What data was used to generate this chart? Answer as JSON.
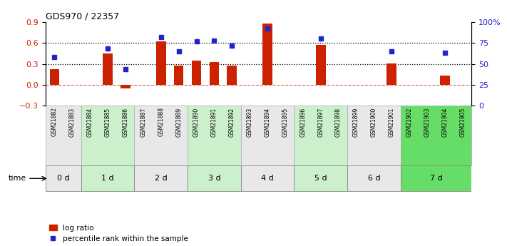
{
  "title": "GDS970 / 22357",
  "samples": [
    "GSM21882",
    "GSM21883",
    "GSM21884",
    "GSM21885",
    "GSM21886",
    "GSM21887",
    "GSM21888",
    "GSM21889",
    "GSM21890",
    "GSM21891",
    "GSM21892",
    "GSM21893",
    "GSM21894",
    "GSM21895",
    "GSM21896",
    "GSM21897",
    "GSM21898",
    "GSM21899",
    "GSM21900",
    "GSM21901",
    "GSM21902",
    "GSM21903",
    "GSM21904",
    "GSM21905"
  ],
  "log_ratio": [
    0.22,
    0.0,
    0.0,
    0.45,
    -0.05,
    0.0,
    0.62,
    0.27,
    0.35,
    0.33,
    0.27,
    0.0,
    0.88,
    0.0,
    0.0,
    0.57,
    0.0,
    0.0,
    0.0,
    0.31,
    0.0,
    0.0,
    0.13,
    0.0
  ],
  "percentile_pct": [
    58,
    0,
    0,
    68,
    44,
    0,
    82,
    65,
    77,
    78,
    72,
    0,
    92,
    0,
    0,
    80,
    0,
    0,
    0,
    65,
    0,
    0,
    63,
    0
  ],
  "time_groups": [
    {
      "label": "0 d",
      "start": 0,
      "end": 2,
      "color": "#e8e8e8"
    },
    {
      "label": "1 d",
      "start": 2,
      "end": 5,
      "color": "#ccf0cc"
    },
    {
      "label": "2 d",
      "start": 5,
      "end": 8,
      "color": "#e8e8e8"
    },
    {
      "label": "3 d",
      "start": 8,
      "end": 11,
      "color": "#ccf0cc"
    },
    {
      "label": "4 d",
      "start": 11,
      "end": 14,
      "color": "#e8e8e8"
    },
    {
      "label": "5 d",
      "start": 14,
      "end": 17,
      "color": "#ccf0cc"
    },
    {
      "label": "6 d",
      "start": 17,
      "end": 20,
      "color": "#e8e8e8"
    },
    {
      "label": "7 d",
      "start": 20,
      "end": 24,
      "color": "#66dd66"
    }
  ],
  "bar_color": "#cc2200",
  "dot_color": "#2222cc",
  "left_ylim": [
    -0.3,
    0.9
  ],
  "left_yticks": [
    -0.3,
    0.0,
    0.3,
    0.6,
    0.9
  ],
  "right_ytick_labels": [
    "0",
    "25",
    "50",
    "75",
    "100%"
  ],
  "hline_zero": 0.0,
  "hline_75": 0.6,
  "hline_50": 0.3,
  "legend_logratio": "log ratio",
  "legend_percentile": "percentile rank within the sample"
}
